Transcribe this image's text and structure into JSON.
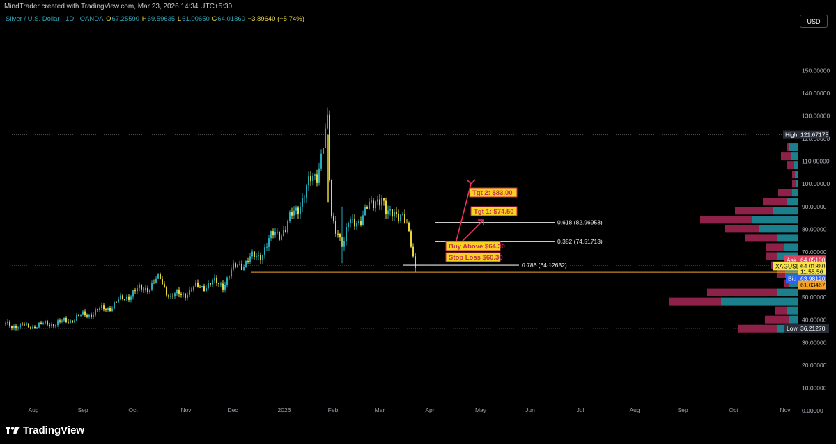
{
  "header": {
    "created_by": "MindTrader created with TradingView.com, Mar 23, 2026 14:34 UTC+5:30"
  },
  "symbol": {
    "name": "Silver / U.S. Dollar · 1D · OANDA",
    "open_label": "O",
    "open": "67.25590",
    "high_label": "H",
    "high": "69.59635",
    "low_label": "L",
    "low": "61.00650",
    "close_label": "C",
    "close": "64.01860",
    "change": "−3.89640 (−5.74%)"
  },
  "currency_button": "USD",
  "price_axis": {
    "ticks": [
      "150.00000",
      "140.00000",
      "130.00000",
      "120.00000",
      "110.00000",
      "100.00000",
      "90.00000",
      "80.00000",
      "70.00000",
      "50.00000",
      "40.00000",
      "30.00000",
      "20.00000",
      "10.00000",
      "0.00000"
    ],
    "high_tag": "High",
    "high_value": "121.67175",
    "ask_tag": "Ask",
    "ask_value": "64.05100",
    "sym_tag": "XAGUSD",
    "last_value": "64.01860",
    "countdown": "11:55:56",
    "bid_tag": "Bid",
    "bid_value": "63.98120",
    "stop_value": "61.03467",
    "low_tag": "Low",
    "low_value": "36.21270"
  },
  "time_axis": [
    "Aug",
    "Sep",
    "Oct",
    "Nov",
    "Dec",
    "2026",
    "Feb",
    "Mar",
    "Apr",
    "May",
    "Jun",
    "Jul",
    "Aug",
    "Sep",
    "Oct",
    "Nov"
  ],
  "annotations": {
    "tgt2": "Tgt 2: $83.00",
    "tgt1": "Tgt 1: $74.50",
    "buy": "Buy Above $64.30",
    "stop": "Stop Loss $60.30",
    "fib_618": "0.618 (82.96953)",
    "fib_382": "0.382 (74.51713)",
    "fib_786": "0.786 (64.12632)"
  },
  "colors": {
    "bull": "#26a9b8",
    "bear": "#e9d63c",
    "vp_up": "#1b7f8c",
    "vp_down": "#8e2148",
    "highlight": "#f7b731",
    "ask": "#e0435f",
    "bid": "#2962ff"
  },
  "brand": "TradingView"
}
